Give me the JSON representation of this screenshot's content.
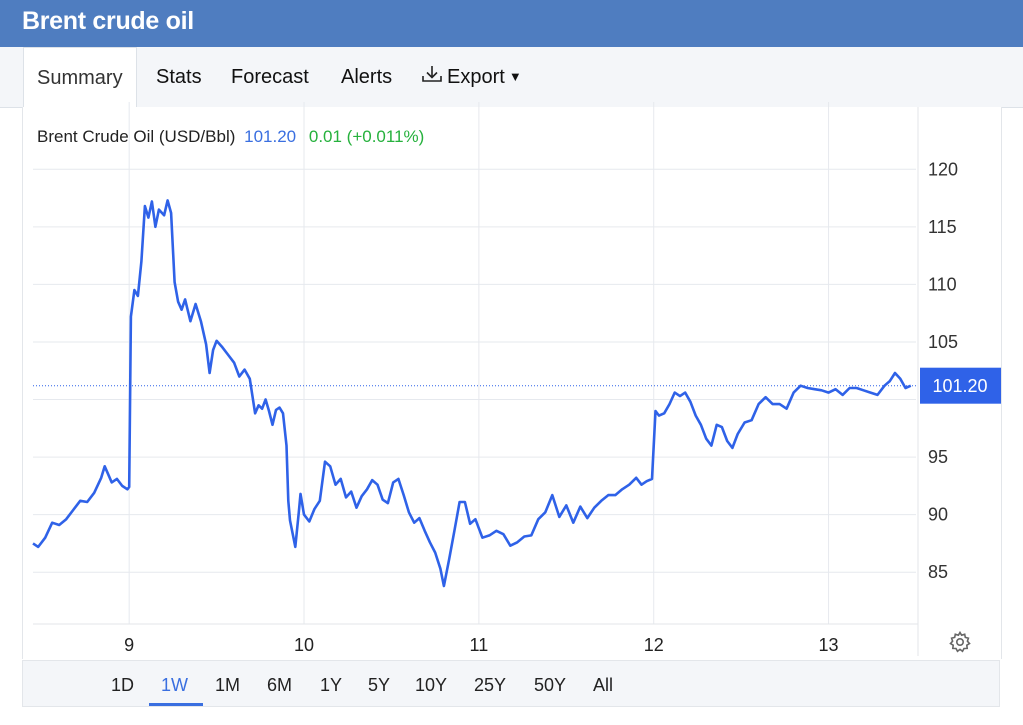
{
  "header": {
    "title": "Brent crude oil"
  },
  "tabs": [
    {
      "label": "Summary",
      "active": true
    },
    {
      "label": "Stats"
    },
    {
      "label": "Forecast"
    },
    {
      "label": "Alerts"
    },
    {
      "label": "Export",
      "icon": "download-icon",
      "has_dropdown": true
    }
  ],
  "legend": {
    "name": "Brent Crude Oil (USD/Bbl)",
    "price": "101.20",
    "change": "0.01 (+0.011%)"
  },
  "price_tag": "101.20",
  "ranges": [
    {
      "label": "1D"
    },
    {
      "label": "1W",
      "active": true
    },
    {
      "label": "1M"
    },
    {
      "label": "6M"
    },
    {
      "label": "1Y"
    },
    {
      "label": "5Y"
    },
    {
      "label": "10Y"
    },
    {
      "label": "25Y"
    },
    {
      "label": "50Y"
    },
    {
      "label": "All"
    }
  ],
  "settings_icon": "gear-icon",
  "colors": {
    "header": "#4f7dc0",
    "line": "#2f62e8",
    "change_positive": "#26b13d",
    "price_tag_bg": "#2f62e8"
  },
  "chart_data": {
    "type": "line",
    "series": [
      {
        "name": "Brent Crude Oil (USD/Bbl)",
        "points": [
          [
            8.45,
            87.5
          ],
          [
            8.48,
            87.2
          ],
          [
            8.52,
            88.0
          ],
          [
            8.56,
            89.3
          ],
          [
            8.6,
            89.1
          ],
          [
            8.64,
            89.6
          ],
          [
            8.68,
            90.4
          ],
          [
            8.72,
            91.2
          ],
          [
            8.76,
            91.1
          ],
          [
            8.8,
            91.9
          ],
          [
            8.84,
            93.2
          ],
          [
            8.86,
            94.2
          ],
          [
            8.88,
            93.5
          ],
          [
            8.9,
            92.8
          ],
          [
            8.93,
            93.1
          ],
          [
            8.96,
            92.5
          ],
          [
            8.99,
            92.2
          ],
          [
            9.0,
            92.4
          ],
          [
            9.01,
            107.2
          ],
          [
            9.03,
            109.5
          ],
          [
            9.05,
            109.0
          ],
          [
            9.07,
            112.0
          ],
          [
            9.09,
            116.8
          ],
          [
            9.11,
            115.8
          ],
          [
            9.13,
            117.2
          ],
          [
            9.15,
            115.0
          ],
          [
            9.17,
            116.5
          ],
          [
            9.2,
            116.0
          ],
          [
            9.22,
            117.3
          ],
          [
            9.24,
            116.2
          ],
          [
            9.26,
            110.2
          ],
          [
            9.28,
            108.5
          ],
          [
            9.3,
            107.8
          ],
          [
            9.32,
            108.7
          ],
          [
            9.35,
            106.8
          ],
          [
            9.38,
            108.3
          ],
          [
            9.41,
            106.8
          ],
          [
            9.44,
            104.8
          ],
          [
            9.46,
            102.3
          ],
          [
            9.48,
            104.3
          ],
          [
            9.5,
            105.1
          ],
          [
            9.53,
            104.6
          ],
          [
            9.56,
            104.0
          ],
          [
            9.6,
            103.2
          ],
          [
            9.63,
            102.0
          ],
          [
            9.66,
            102.6
          ],
          [
            9.69,
            101.8
          ],
          [
            9.72,
            98.8
          ],
          [
            9.74,
            99.5
          ],
          [
            9.76,
            99.2
          ],
          [
            9.78,
            100.0
          ],
          [
            9.8,
            99.0
          ],
          [
            9.82,
            97.8
          ],
          [
            9.84,
            99.1
          ],
          [
            9.86,
            99.3
          ],
          [
            9.88,
            98.8
          ],
          [
            9.9,
            96.0
          ],
          [
            9.91,
            91.2
          ],
          [
            9.92,
            89.5
          ],
          [
            9.95,
            87.2
          ],
          [
            9.97,
            90.2
          ],
          [
            9.98,
            91.8
          ],
          [
            10.0,
            90.0
          ],
          [
            10.03,
            89.4
          ],
          [
            10.06,
            90.5
          ],
          [
            10.09,
            91.2
          ],
          [
            10.12,
            94.6
          ],
          [
            10.15,
            94.2
          ],
          [
            10.18,
            92.6
          ],
          [
            10.21,
            93.1
          ],
          [
            10.24,
            91.5
          ],
          [
            10.27,
            92.0
          ],
          [
            10.3,
            90.6
          ],
          [
            10.33,
            91.6
          ],
          [
            10.36,
            92.2
          ],
          [
            10.39,
            93.0
          ],
          [
            10.42,
            92.6
          ],
          [
            10.45,
            91.3
          ],
          [
            10.48,
            91.0
          ],
          [
            10.51,
            92.8
          ],
          [
            10.54,
            93.1
          ],
          [
            10.57,
            91.7
          ],
          [
            10.6,
            90.2
          ],
          [
            10.63,
            89.3
          ],
          [
            10.66,
            89.7
          ],
          [
            10.69,
            88.6
          ],
          [
            10.72,
            87.6
          ],
          [
            10.75,
            86.7
          ],
          [
            10.78,
            85.3
          ],
          [
            10.8,
            83.8
          ],
          [
            10.83,
            86.1
          ],
          [
            10.86,
            88.6
          ],
          [
            10.89,
            91.1
          ],
          [
            10.92,
            91.1
          ],
          [
            10.95,
            89.2
          ],
          [
            10.98,
            89.6
          ],
          [
            11.02,
            88.0
          ],
          [
            11.06,
            88.2
          ],
          [
            11.1,
            88.6
          ],
          [
            11.14,
            88.3
          ],
          [
            11.18,
            87.3
          ],
          [
            11.22,
            87.6
          ],
          [
            11.26,
            88.1
          ],
          [
            11.3,
            88.2
          ],
          [
            11.34,
            89.6
          ],
          [
            11.38,
            90.2
          ],
          [
            11.42,
            91.7
          ],
          [
            11.46,
            89.8
          ],
          [
            11.5,
            90.8
          ],
          [
            11.54,
            89.3
          ],
          [
            11.58,
            90.7
          ],
          [
            11.62,
            89.7
          ],
          [
            11.66,
            90.6
          ],
          [
            11.7,
            91.2
          ],
          [
            11.74,
            91.7
          ],
          [
            11.78,
            91.7
          ],
          [
            11.82,
            92.2
          ],
          [
            11.86,
            92.6
          ],
          [
            11.9,
            93.2
          ],
          [
            11.93,
            92.6
          ],
          [
            11.96,
            92.9
          ],
          [
            11.99,
            93.1
          ],
          [
            12.01,
            99.0
          ],
          [
            12.03,
            98.6
          ],
          [
            12.06,
            98.8
          ],
          [
            12.09,
            99.6
          ],
          [
            12.12,
            100.6
          ],
          [
            12.15,
            100.3
          ],
          [
            12.18,
            100.6
          ],
          [
            12.21,
            99.8
          ],
          [
            12.24,
            98.6
          ],
          [
            12.27,
            97.8
          ],
          [
            12.3,
            96.6
          ],
          [
            12.33,
            96.0
          ],
          [
            12.36,
            97.8
          ],
          [
            12.39,
            97.6
          ],
          [
            12.42,
            96.4
          ],
          [
            12.45,
            95.8
          ],
          [
            12.48,
            97.0
          ],
          [
            12.52,
            98.0
          ],
          [
            12.56,
            98.2
          ],
          [
            12.6,
            99.6
          ],
          [
            12.64,
            100.2
          ],
          [
            12.68,
            99.6
          ],
          [
            12.72,
            99.6
          ],
          [
            12.76,
            99.2
          ],
          [
            12.8,
            100.6
          ],
          [
            12.84,
            101.2
          ],
          [
            12.88,
            101.0
          ],
          [
            12.92,
            100.9
          ],
          [
            12.96,
            100.8
          ],
          [
            13.0,
            100.6
          ],
          [
            13.04,
            100.9
          ],
          [
            13.08,
            100.4
          ],
          [
            13.12,
            101.0
          ],
          [
            13.16,
            101.0
          ],
          [
            13.2,
            100.8
          ],
          [
            13.24,
            100.6
          ],
          [
            13.28,
            100.4
          ],
          [
            13.32,
            101.2
          ],
          [
            13.35,
            101.6
          ],
          [
            13.38,
            102.3
          ],
          [
            13.41,
            101.8
          ],
          [
            13.44,
            101.0
          ],
          [
            13.47,
            101.2
          ]
        ]
      }
    ],
    "x_ticks": [
      9,
      10,
      11,
      12,
      13
    ],
    "y_ticks": [
      85,
      90,
      95,
      100,
      105,
      110,
      115,
      120
    ],
    "y_tick_labels": [
      "85",
      "90",
      "95",
      "",
      "105",
      "110",
      "115",
      "120"
    ],
    "xlim": [
      8.45,
      13.5
    ],
    "ylim": [
      80.5,
      121.5
    ],
    "current_value": 101.2,
    "grid": true,
    "xlabel": "",
    "ylabel": ""
  }
}
